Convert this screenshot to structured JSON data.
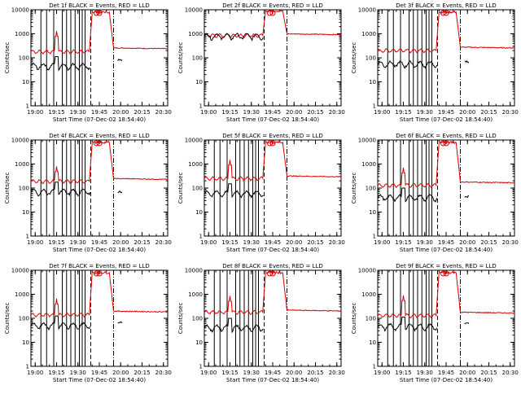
{
  "page": {
    "time_label": "Start Time (07-Dec-02 18:54:40)",
    "ylabel": "Counts/sec",
    "legend_text": "BLACK = Events, RED = LLD",
    "colors": {
      "events": "#000000",
      "lld": "#dd0000",
      "axes": "#000000"
    }
  },
  "chart_data": [
    {
      "type": "line",
      "title": "Det 1f BLACK = Events, RED = LLD",
      "xlabel": "Start Time (07-Dec-02 18:54:40)",
      "ylabel": "Counts/sec",
      "xticks": [
        "19:00",
        "19:15",
        "19:30",
        "19:45",
        "20:00",
        "20:15",
        "20:30"
      ],
      "yticks": [
        "1",
        "10",
        "100",
        "1000",
        "10000"
      ],
      "ylim": [
        1,
        10000
      ],
      "xlim": [
        0,
        96
      ],
      "lld_base": 180,
      "events_base": 45,
      "spike": 1300,
      "saa_peak": 8000,
      "post_lld": 260,
      "post_events": 80,
      "lines_solid": [
        7,
        11,
        16,
        22,
        25,
        28,
        31,
        34,
        36,
        38
      ],
      "lines_dashed": [
        42,
        58
      ]
    },
    {
      "type": "line",
      "title": "Det 2f BLACK = Events, RED = LLD",
      "xlabel": "Start Time (07-Dec-02 18:54:40)",
      "ylabel": "Counts/sec",
      "xticks": [
        "19:00",
        "19:15",
        "19:30",
        "19:45",
        "20:00",
        "20:15",
        "20:30"
      ],
      "yticks": [
        "1",
        "10",
        "100",
        "1000",
        "10000"
      ],
      "ylim": [
        1,
        10000
      ],
      "xlim": [
        0,
        96
      ],
      "lld_base": 850,
      "events_base": 800,
      "spike": 0,
      "saa_peak": 9000,
      "post_lld": 1000,
      "post_events": 0,
      "lines_solid": [],
      "lines_dashed": [
        42,
        58
      ]
    },
    {
      "type": "line",
      "title": "Det 3f BLACK = Events, RED = LLD",
      "xlabel": "Start Time (07-Dec-02 18:54:40)",
      "ylabel": "Counts/sec",
      "xticks": [
        "19:00",
        "19:15",
        "19:30",
        "19:45",
        "20:00",
        "20:15",
        "20:30"
      ],
      "yticks": [
        "1",
        "10",
        "100",
        "1000",
        "10000"
      ],
      "ylim": [
        1,
        10000
      ],
      "xlim": [
        0,
        96
      ],
      "lld_base": 200,
      "events_base": 55,
      "spike": 0,
      "saa_peak": 8000,
      "post_lld": 280,
      "post_events": 70,
      "lines_solid": [
        7,
        11,
        16,
        22,
        25,
        28,
        31,
        34,
        36,
        38
      ],
      "lines_dashed": [
        42,
        58
      ]
    },
    {
      "type": "line",
      "title": "Det 4f BLACK = Events, RED = LLD",
      "xlabel": "Start Time (07-Dec-02 18:54:40)",
      "ylabel": "Counts/sec",
      "xticks": [
        "19:00",
        "19:15",
        "19:30",
        "19:45",
        "20:00",
        "20:15",
        "20:30"
      ],
      "yticks": [
        "1",
        "10",
        "100",
        "1000",
        "10000"
      ],
      "ylim": [
        1,
        10000
      ],
      "xlim": [
        0,
        96
      ],
      "lld_base": 190,
      "events_base": 70,
      "spike": 800,
      "saa_peak": 8000,
      "post_lld": 250,
      "post_events": 70,
      "lines_solid": [
        7,
        11,
        16,
        22,
        25,
        28,
        31,
        34,
        36,
        38
      ],
      "lines_dashed": [
        42,
        58
      ]
    },
    {
      "type": "line",
      "title": "Det 5f BLACK = Events, RED = LLD",
      "xlabel": "Start Time (07-Dec-02 18:54:40)",
      "ylabel": "Counts/sec",
      "xticks": [
        "19:00",
        "19:15",
        "19:30",
        "19:45",
        "20:00",
        "20:15",
        "20:30"
      ],
      "yticks": [
        "1",
        "10",
        "100",
        "1000",
        "10000"
      ],
      "ylim": [
        1,
        10000
      ],
      "xlim": [
        0,
        96
      ],
      "lld_base": 250,
      "events_base": 60,
      "spike": 1500,
      "saa_peak": 8000,
      "post_lld": 320,
      "post_events": 0,
      "lines_solid": [
        7,
        11,
        16,
        22,
        25,
        28,
        31,
        34,
        36,
        38
      ],
      "lines_dashed": [
        42,
        58
      ]
    },
    {
      "type": "line",
      "title": "Det 6f BLACK = Events, RED = LLD",
      "xlabel": "Start Time (07-Dec-02 18:54:40)",
      "ylabel": "Counts/sec",
      "xticks": [
        "19:00",
        "19:15",
        "19:30",
        "19:45",
        "20:00",
        "20:15",
        "20:30"
      ],
      "yticks": [
        "1",
        "10",
        "100",
        "1000",
        "10000"
      ],
      "ylim": [
        1,
        10000
      ],
      "xlim": [
        0,
        96
      ],
      "lld_base": 130,
      "events_base": 40,
      "spike": 700,
      "saa_peak": 8000,
      "post_lld": 180,
      "post_events": 45,
      "lines_solid": [
        7,
        11,
        16,
        22,
        25,
        28,
        31,
        34,
        36,
        38
      ],
      "lines_dashed": [
        42,
        58
      ]
    },
    {
      "type": "line",
      "title": "Det 7f BLACK = Events, RED = LLD",
      "xlabel": "Start Time (07-Dec-02 18:54:40)",
      "ylabel": "Counts/sec",
      "xticks": [
        "19:00",
        "19:15",
        "19:30",
        "19:45",
        "20:00",
        "20:15",
        "20:30"
      ],
      "yticks": [
        "1",
        "10",
        "100",
        "1000",
        "10000"
      ],
      "ylim": [
        1,
        10000
      ],
      "xlim": [
        0,
        96
      ],
      "lld_base": 140,
      "events_base": 50,
      "spike": 650,
      "saa_peak": 8000,
      "post_lld": 200,
      "post_events": 70,
      "lines_solid": [
        7,
        11,
        16,
        22,
        25,
        28,
        31,
        34,
        36,
        38
      ],
      "lines_dashed": [
        42,
        58
      ]
    },
    {
      "type": "line",
      "title": "Det 8f BLACK = Events, RED = LLD",
      "xlabel": "Start Time (07-Dec-02 18:54:40)",
      "ylabel": "Counts/sec",
      "xticks": [
        "19:00",
        "19:15",
        "19:30",
        "19:45",
        "20:00",
        "20:15",
        "20:30"
      ],
      "yticks": [
        "1",
        "10",
        "100",
        "1000",
        "10000"
      ],
      "ylim": [
        1,
        10000
      ],
      "xlim": [
        0,
        96
      ],
      "lld_base": 180,
      "events_base": 40,
      "spike": 850,
      "saa_peak": 8000,
      "post_lld": 220,
      "post_events": 0,
      "lines_solid": [
        7,
        11,
        16,
        22,
        25,
        28,
        31,
        34,
        36,
        38
      ],
      "lines_dashed": [
        42,
        58
      ]
    },
    {
      "type": "line",
      "title": "Det 9f BLACK = Events, RED = LLD",
      "xlabel": "Start Time (07-Dec-02 18:54:40)",
      "ylabel": "Counts/sec",
      "xticks": [
        "19:00",
        "19:15",
        "19:30",
        "19:45",
        "20:00",
        "20:15",
        "20:30"
      ],
      "yticks": [
        "1",
        "10",
        "100",
        "1000",
        "10000"
      ],
      "ylim": [
        1,
        10000
      ],
      "xlim": [
        0,
        96
      ],
      "lld_base": 130,
      "events_base": 45,
      "spike": 900,
      "saa_peak": 8000,
      "post_lld": 180,
      "post_events": 60,
      "lines_solid": [
        7,
        11,
        16,
        22,
        25,
        28,
        31,
        34,
        36,
        38
      ],
      "lines_dashed": [
        42,
        58
      ]
    }
  ]
}
